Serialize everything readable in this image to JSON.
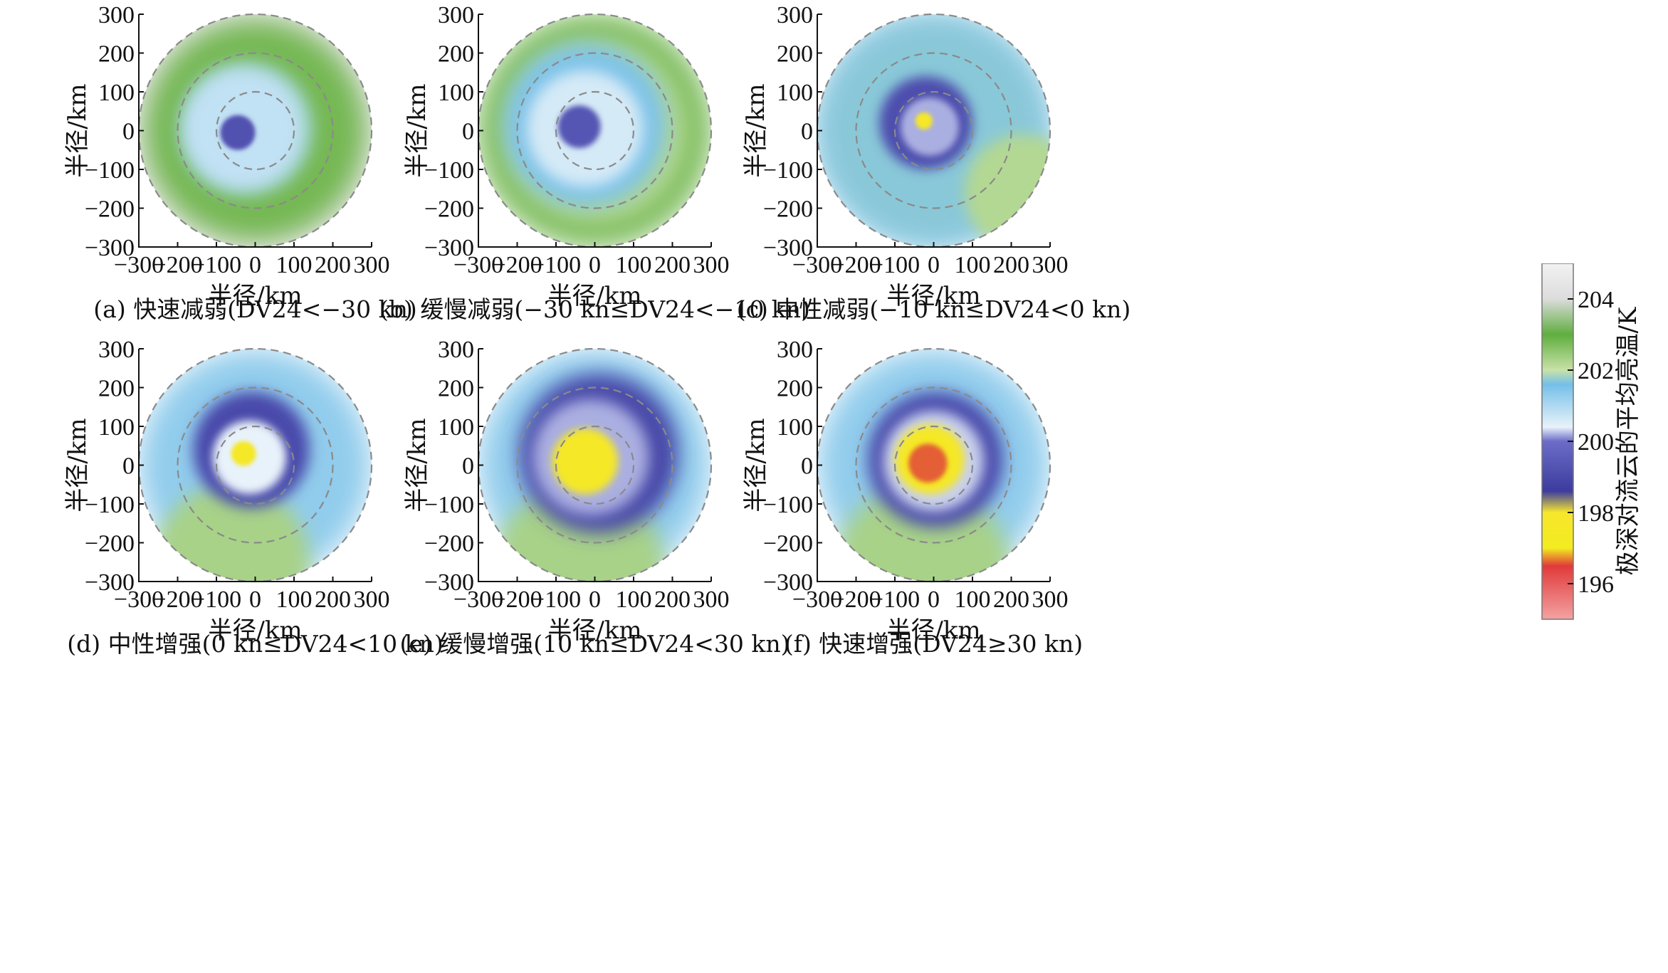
{
  "chart_data": {
    "type": "heatmap",
    "xlabel": "半径/km",
    "ylabel": "半径/km",
    "xlim": [
      -300,
      300
    ],
    "ylim": [
      -300,
      300
    ],
    "xticks": [
      -300,
      -200,
      -100,
      0,
      100,
      200,
      300
    ],
    "yticks": [
      300,
      200,
      100,
      0,
      -100,
      -200,
      -300
    ],
    "dashed_circles_km": [
      100,
      200,
      300
    ],
    "colorbar": {
      "title": "极深对流云的平均亮温/K",
      "ticks": [
        204,
        202,
        200,
        198,
        196
      ],
      "range": [
        195,
        205
      ],
      "stops": [
        {
          "value": 205,
          "color": "#f2f2f2"
        },
        {
          "value": 204,
          "color": "#dcdcdc"
        },
        {
          "value": 203,
          "color": "#5fae3e"
        },
        {
          "value": 202,
          "color": "#c8e2a8"
        },
        {
          "value": 201.6,
          "color": "#74bfe8"
        },
        {
          "value": 200.4,
          "color": "#e8f2fa"
        },
        {
          "value": 200,
          "color": "#6c6cc8"
        },
        {
          "value": 198.6,
          "color": "#3c3c9e"
        },
        {
          "value": 198,
          "color": "#f7e62c"
        },
        {
          "value": 197,
          "color": "#f3ec20"
        },
        {
          "value": 196.5,
          "color": "#e03a3a"
        },
        {
          "value": 195,
          "color": "#f4a2a2"
        }
      ]
    },
    "panels": [
      {
        "id": "a",
        "caption": "(a) 快速减弱(DV24<−30 kn)",
        "layers": [
          {
            "tb": 204.2,
            "r": 320,
            "cx": 0,
            "cy": 0
          },
          {
            "tb": 202.8,
            "r": 285,
            "cx": 0,
            "cy": 0
          },
          {
            "tb": 201.8,
            "r": 175,
            "cx": -25,
            "cy": 5
          },
          {
            "tb": 200.8,
            "r": 150,
            "cx": -30,
            "cy": 5
          },
          {
            "tb": 199.2,
            "r": 45,
            "cx": -45,
            "cy": -5
          }
        ]
      },
      {
        "id": "b",
        "caption": "(b) 缓慢减弱(−30 kn≤DV24<−10 kn)",
        "layers": [
          {
            "tb": 202.8,
            "r": 300,
            "cx": 0,
            "cy": 0
          },
          {
            "tb": 202.2,
            "r": 240,
            "cx": 0,
            "cy": 0
          },
          {
            "tb": 201.5,
            "r": 210,
            "cx": -25,
            "cy": 15
          },
          {
            "tb": 200.6,
            "r": 150,
            "cx": -25,
            "cy": 5
          },
          {
            "tb": 199.3,
            "r": 55,
            "cx": -40,
            "cy": 10
          }
        ]
      },
      {
        "id": "c",
        "caption": "(c) 中性减弱(−10 kn≤DV24<0 kn)",
        "layers": [
          {
            "tb": 201.2,
            "r": 300,
            "cx": 0,
            "cy": 0
          },
          {
            "tb": 201.7,
            "r": 290,
            "cx": 0,
            "cy": 0
          },
          {
            "tb": 202.2,
            "r": 150,
            "cx": 230,
            "cy": -160
          },
          {
            "tb": 199.1,
            "r": 120,
            "cx": -20,
            "cy": 20
          },
          {
            "tb": 200.2,
            "r": 75,
            "cx": -10,
            "cy": 10
          },
          {
            "tb": 197.7,
            "r": 22,
            "cx": -25,
            "cy": 25
          }
        ]
      },
      {
        "id": "d",
        "caption": "(d) 中性增强(0 kn≤DV24<10 kn)",
        "layers": [
          {
            "tb": 201.3,
            "r": 300,
            "cx": 0,
            "cy": 0
          },
          {
            "tb": 202.3,
            "r": 200,
            "cx": -60,
            "cy": -250
          },
          {
            "tb": 199.0,
            "r": 150,
            "cx": -10,
            "cy": 40
          },
          {
            "tb": 200.4,
            "r": 95,
            "cx": -15,
            "cy": 20
          },
          {
            "tb": 197.6,
            "r": 32,
            "cx": -30,
            "cy": 30
          }
        ]
      },
      {
        "id": "e",
        "caption": "(e) 缓慢增强(10 kn≤DV24<30 kn)",
        "layers": [
          {
            "tb": 201.3,
            "r": 300,
            "cx": 0,
            "cy": 0
          },
          {
            "tb": 202.3,
            "r": 220,
            "cx": -40,
            "cy": -270
          },
          {
            "tb": 198.9,
            "r": 205,
            "cx": 10,
            "cy": 30
          },
          {
            "tb": 200.2,
            "r": 150,
            "cx": -10,
            "cy": 20
          },
          {
            "tb": 197.6,
            "r": 85,
            "cx": -25,
            "cy": 10
          }
        ]
      },
      {
        "id": "f",
        "caption": "(f) 快速增强(DV24≥30 kn)",
        "layers": [
          {
            "tb": 201.3,
            "r": 300,
            "cx": 0,
            "cy": 0
          },
          {
            "tb": 202.3,
            "r": 230,
            "cx": -30,
            "cy": -280
          },
          {
            "tb": 199.0,
            "r": 175,
            "cx": 5,
            "cy": 15
          },
          {
            "tb": 200.3,
            "r": 130,
            "cx": 0,
            "cy": 10
          },
          {
            "tb": 197.6,
            "r": 90,
            "cx": -10,
            "cy": 15
          },
          {
            "tb": 196.6,
            "r": 50,
            "cx": -15,
            "cy": 5
          }
        ]
      }
    ]
  }
}
